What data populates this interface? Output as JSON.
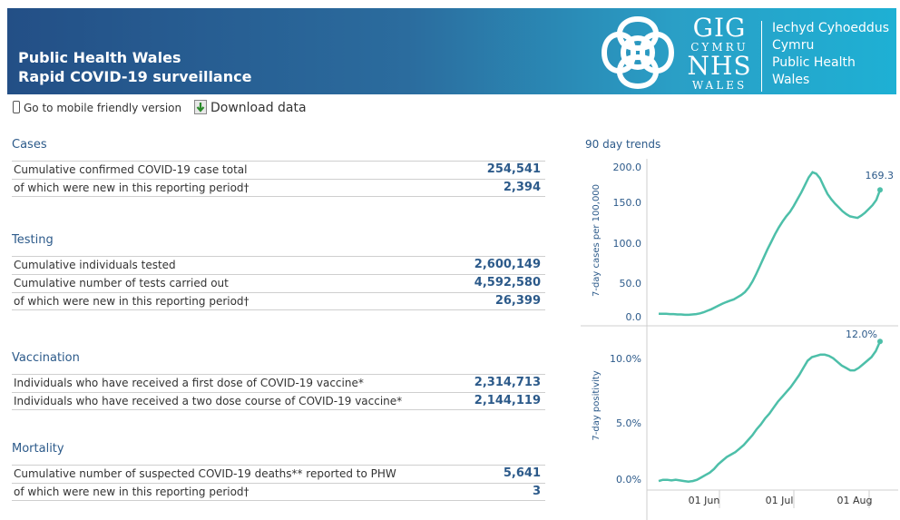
{
  "header": {
    "title_line1": "Public Health Wales",
    "title_line2": "Rapid COVID-19 surveillance",
    "logo": {
      "gig": "GIG",
      "cymru": "CYMRU",
      "nhs": "NHS",
      "wales": "WALES",
      "line1": "Iechyd Cyhoeddus",
      "line2": "Cymru",
      "line3": "Public Health",
      "line4": "Wales"
    }
  },
  "toolbar": {
    "mobile_label": "Go to mobile friendly version",
    "download_label": "Download data"
  },
  "sections": {
    "cases": {
      "title": "Cases",
      "rows": [
        {
          "label": "Cumulative confirmed COVID-19 case total",
          "value": "254,541"
        },
        {
          "label": "of which were new in this reporting period†",
          "value": "2,394"
        }
      ]
    },
    "testing": {
      "title": "Testing",
      "rows": [
        {
          "label": "Cumulative individuals tested",
          "value": "2,600,149"
        },
        {
          "label": "Cumulative number of tests carried out",
          "value": "4,592,580"
        },
        {
          "label": "of which were new in this reporting period†",
          "value": "26,399"
        }
      ]
    },
    "vaccination": {
      "title": "Vaccination",
      "rows": [
        {
          "label": "Individuals who have received a first dose of COVID-19 vaccine*",
          "value": "2,314,713"
        },
        {
          "label": "Individuals who have received a two dose course of COVID-19 vaccine*",
          "value": "2,144,119"
        }
      ]
    },
    "mortality": {
      "title": "Mortality",
      "rows": [
        {
          "label": "Cumulative number of suspected COVID-19 deaths** reported to PHW",
          "value": "5,641"
        },
        {
          "label": "of which were new in this reporting period†",
          "value": "3"
        }
      ]
    }
  },
  "colors": {
    "accent": "#2c5a8a",
    "line": "#4dbfa9"
  },
  "trends": {
    "title": "90 day trends",
    "date_labels": [
      "01 Jun",
      "01 Jul",
      "01 Aug"
    ],
    "chart1": {
      "ylabel": "7-day cases per 100,000",
      "ticks": [
        "200.0",
        "150.0",
        "100.0",
        "50.0",
        "0.0"
      ],
      "end_label": "169.3",
      "ylim": [
        0,
        200
      ],
      "values": [
        4,
        4,
        4,
        3.5,
        3.5,
        3,
        3,
        2.5,
        2.5,
        3,
        3.5,
        4.5,
        6,
        8,
        10,
        12.5,
        15,
        17.5,
        19.5,
        21.5,
        23,
        26,
        29,
        33,
        39,
        47,
        57,
        68,
        79,
        90,
        100,
        110,
        119,
        127,
        134,
        140,
        148,
        157,
        166,
        176,
        186,
        193,
        191,
        185,
        174,
        164,
        157,
        151,
        146,
        141,
        137,
        134,
        133,
        132,
        135,
        139,
        144,
        149,
        156,
        169.3
      ]
    },
    "chart2": {
      "ylabel": "7-day positivity",
      "ticks": [
        "10.0%",
        "5.0%",
        "0.0%"
      ],
      "end_label": "12.0%",
      "ylim": [
        -0.5,
        13
      ],
      "values": [
        0.4,
        0.5,
        0.5,
        0.45,
        0.5,
        0.45,
        0.4,
        0.35,
        0.4,
        0.5,
        0.7,
        0.9,
        1.1,
        1.4,
        1.8,
        2.1,
        2.4,
        2.6,
        2.8,
        3.1,
        3.4,
        3.8,
        4.2,
        4.7,
        5.1,
        5.6,
        6.0,
        6.5,
        7.0,
        7.4,
        7.8,
        8.2,
        8.7,
        9.2,
        9.8,
        10.4,
        10.7,
        10.8,
        10.9,
        10.9,
        10.8,
        10.6,
        10.3,
        10.0,
        9.8,
        9.6,
        9.6,
        9.8,
        10.1,
        10.4,
        10.7,
        11.2,
        12.0
      ]
    }
  }
}
